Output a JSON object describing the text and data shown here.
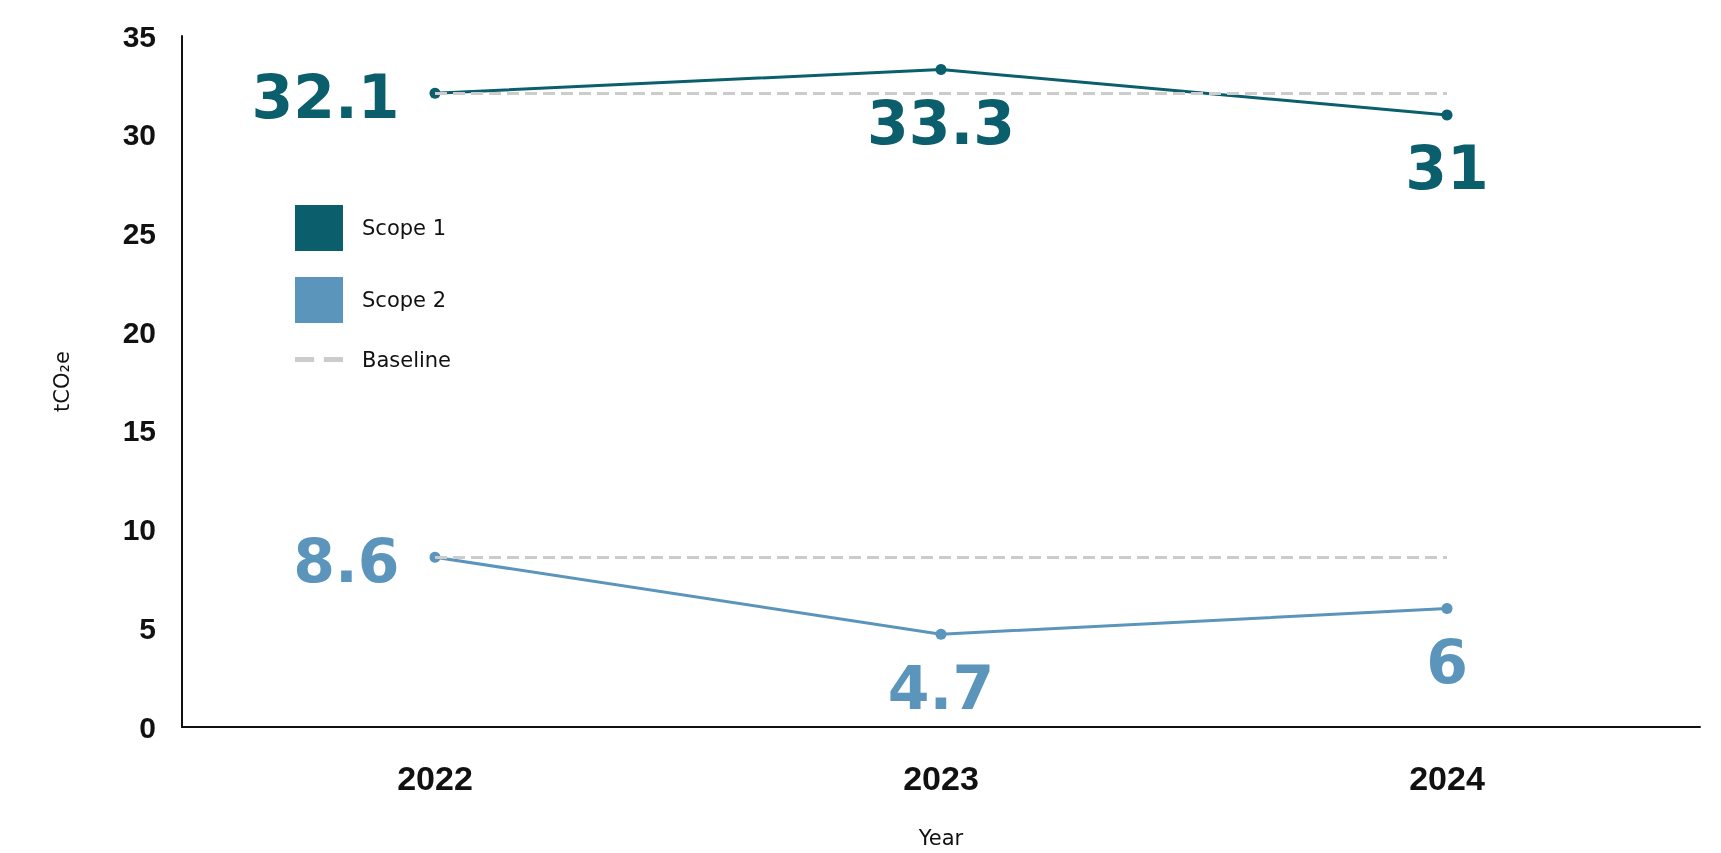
{
  "chart_data": {
    "type": "line",
    "xlabel": "Year",
    "ylabel": "tCO₂e",
    "categories": [
      "2022",
      "2023",
      "2024"
    ],
    "series": [
      {
        "name": "Scope 1",
        "color": "#0b5e6b",
        "values": [
          32.1,
          33.3,
          31
        ]
      },
      {
        "name": "Scope 2",
        "color": "#5b95bb",
        "values": [
          8.6,
          4.7,
          6
        ]
      }
    ],
    "ref_lines": [
      {
        "axis": "y",
        "value": 32.1,
        "label": "Baseline",
        "color": "#cccccc",
        "line_style": "dashed"
      },
      {
        "axis": "y",
        "value": 8.6,
        "color": "#cccccc",
        "line_style": "dashed"
      }
    ],
    "ylim": [
      0,
      35
    ],
    "yticks": [
      0,
      5,
      10,
      15,
      20,
      25,
      30,
      35
    ],
    "grid": false,
    "legend": "top left",
    "marker": "circle",
    "line_style": "solid",
    "data_labels": true
  }
}
